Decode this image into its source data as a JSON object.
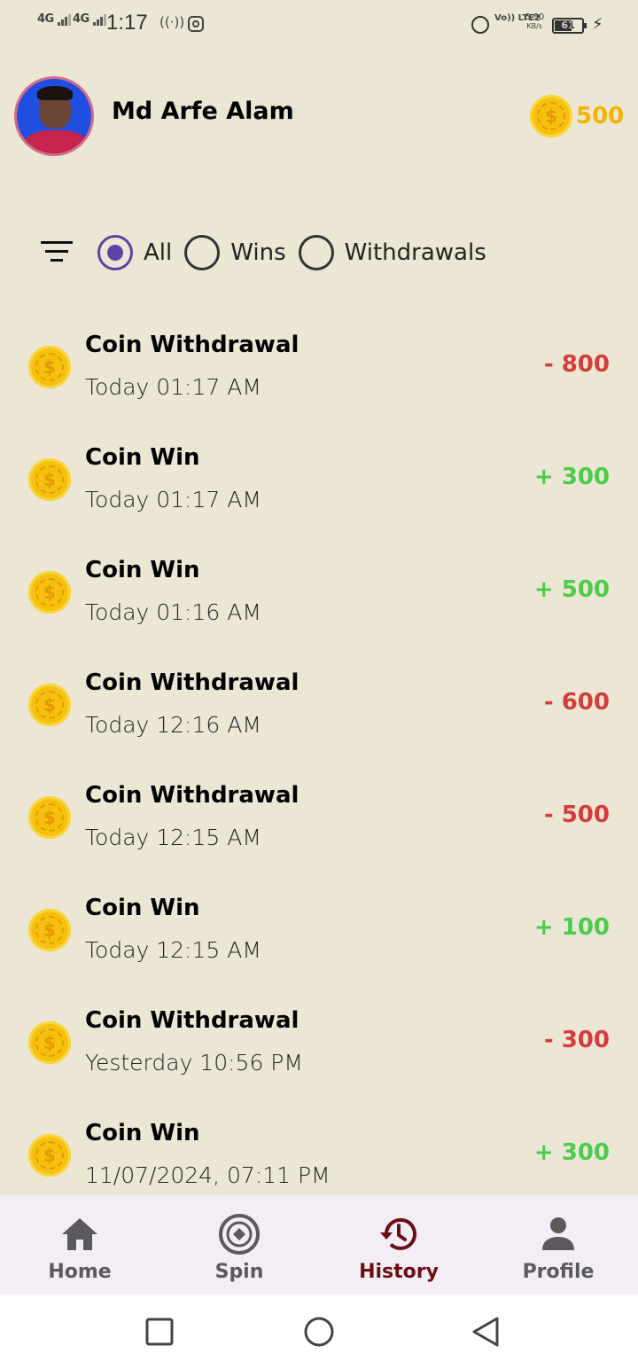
{
  "status_bar": {
    "network1": "4G",
    "network2": "4G",
    "time": "1:17",
    "volte": "Vo)) LTE2",
    "speed_value": "6.90",
    "speed_unit": "KB/s",
    "battery": "61"
  },
  "header": {
    "user_name": "Md Arfe Alam",
    "coin_balance": "500"
  },
  "filter": {
    "options": [
      {
        "label": "All",
        "selected": true
      },
      {
        "label": "Wins",
        "selected": false
      },
      {
        "label": "Withdrawals",
        "selected": false
      }
    ]
  },
  "transactions": [
    {
      "title": "Coin Withdrawal",
      "date": "Today 01:17 AM",
      "amount": "- 800",
      "type": "neg"
    },
    {
      "title": "Coin Win",
      "date": "Today 01:17 AM",
      "amount": "+ 300",
      "type": "pos"
    },
    {
      "title": "Coin Win",
      "date": "Today 01:16 AM",
      "amount": "+ 500",
      "type": "pos"
    },
    {
      "title": "Coin Withdrawal",
      "date": "Today 12:16 AM",
      "amount": "- 600",
      "type": "neg"
    },
    {
      "title": "Coin Withdrawal",
      "date": "Today 12:15 AM",
      "amount": "- 500",
      "type": "neg"
    },
    {
      "title": "Coin Win",
      "date": "Today 12:15 AM",
      "amount": "+ 100",
      "type": "pos"
    },
    {
      "title": "Coin Withdrawal",
      "date": "Yesterday 10:56 PM",
      "amount": "- 300",
      "type": "neg"
    },
    {
      "title": "Coin Win",
      "date": "11/07/2024, 07:11 PM",
      "amount": "+ 300",
      "type": "pos"
    }
  ],
  "bottom_nav": {
    "items": [
      {
        "label": "Home",
        "icon": "home-icon"
      },
      {
        "label": "Spin",
        "icon": "spin-wheel-icon"
      },
      {
        "label": "History",
        "icon": "history-icon",
        "active": true
      },
      {
        "label": "Profile",
        "icon": "person-icon"
      }
    ]
  },
  "coin_symbol": "$",
  "colors": {
    "background": "#ebe7d4",
    "accent": "#5b44a6",
    "negative": "#d63c3c",
    "positive": "#4ccb4c",
    "coin": "#f6c10e",
    "active_nav": "#6a0f14"
  }
}
